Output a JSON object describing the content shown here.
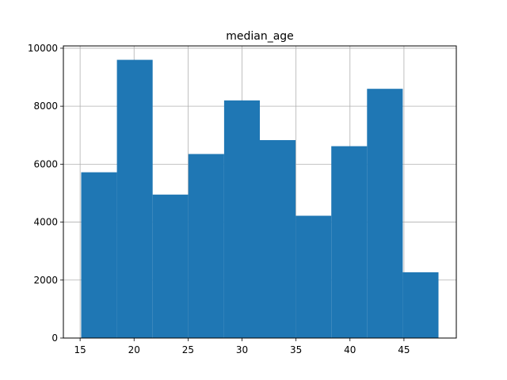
{
  "chart_data": {
    "type": "bar",
    "subtype": "histogram",
    "title": "median_age",
    "xlabel": "",
    "ylabel": "",
    "bin_edges": [
      15.1,
      18.41,
      21.72,
      25.03,
      28.34,
      31.65,
      34.96,
      38.27,
      41.58,
      44.89,
      48.2
    ],
    "values": [
      5720,
      9600,
      4950,
      6350,
      8200,
      6830,
      4220,
      6620,
      8600,
      2270
    ],
    "xlim": [
      13.45,
      49.85
    ],
    "ylim": [
      0,
      10080
    ],
    "xticks": [
      15,
      20,
      25,
      30,
      35,
      40,
      45
    ],
    "yticks": [
      0,
      2000,
      4000,
      6000,
      8000,
      10000
    ],
    "grid": true,
    "bar_color": "#1f77b4",
    "grid_color": "#b0b0b0"
  }
}
